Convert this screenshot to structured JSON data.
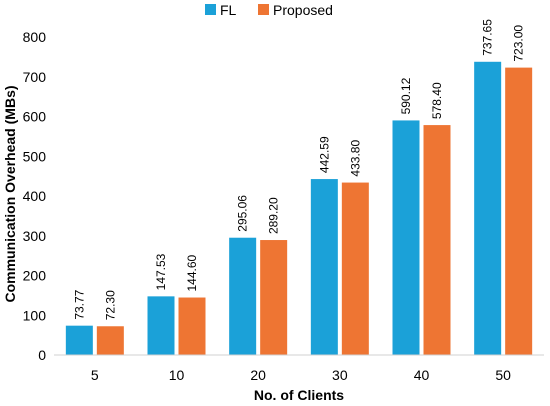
{
  "chart_data": {
    "type": "bar",
    "xlabel": "No. of Clients",
    "ylabel": "Communication Overhead (MBs)",
    "categories": [
      "5",
      "10",
      "20",
      "30",
      "40",
      "50"
    ],
    "series": [
      {
        "name": "FL",
        "values": [
          73.77,
          147.53,
          295.06,
          442.59,
          590.12,
          737.65
        ],
        "labels": [
          "73.77",
          "147.53",
          "295.06",
          "442.59",
          "590.12",
          "737.65"
        ],
        "color": "#1BA1D8"
      },
      {
        "name": "Proposed",
        "values": [
          72.3,
          144.6,
          289.2,
          433.8,
          578.4,
          723.0
        ],
        "labels": [
          "72.30",
          "144.60",
          "289.20",
          "433.80",
          "578.40",
          "723.00"
        ],
        "color": "#EE7533"
      }
    ],
    "ylim": [
      0,
      800
    ],
    "yticks": [
      "0",
      "100",
      "200",
      "300",
      "400",
      "500",
      "600",
      "700",
      "800"
    ],
    "grid": false,
    "legend_position": "top-center",
    "value_label_rotation": "vertical"
  }
}
